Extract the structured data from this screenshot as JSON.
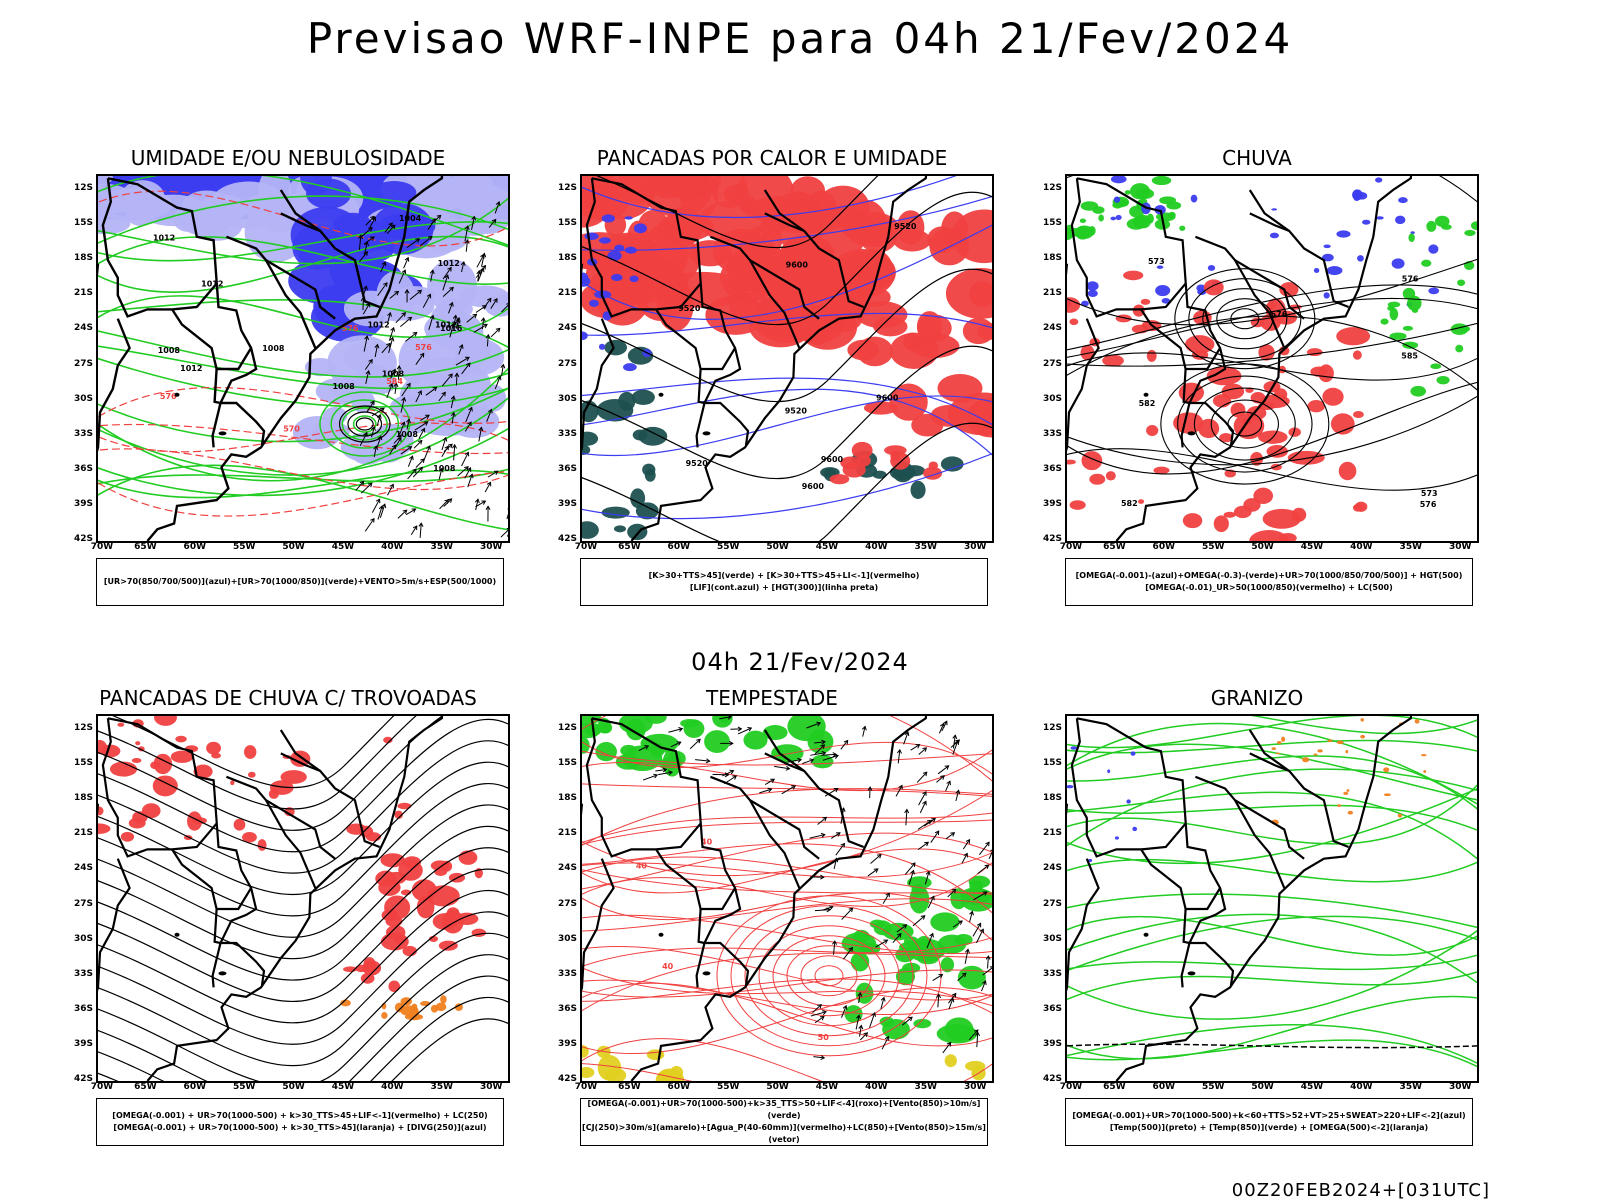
{
  "header": {
    "title": "Previsao WRF-INPE  para 04h 21/Fev/2024"
  },
  "middle": {
    "subtitle": "04h 21/Fev/2024"
  },
  "footer": {
    "stamp": "00Z20FEB2024+[031UTC]"
  },
  "axes": {
    "lat_labels": [
      "12S",
      "15S",
      "18S",
      "21S",
      "24S",
      "27S",
      "30S",
      "33S",
      "36S",
      "39S",
      "42S"
    ],
    "lon_labels": [
      "70W",
      "65W",
      "60W",
      "55W",
      "50W",
      "45W",
      "40W",
      "35W",
      "30W"
    ]
  },
  "colors": {
    "blue": "#3c3cf0",
    "lightblue": "#b4b4f5",
    "green": "#22cc22",
    "red": "#f04040",
    "orange": "#f08020",
    "yellow": "#e0d020",
    "darkteal": "#1e5050",
    "black": "#000000"
  },
  "panels": [
    {
      "title": "UMIDADE E/OU NEBULOSIDADE",
      "legend": [
        "[UR>70(850/700/500)](azul)+[UR>70(1000/850)](verde)+VENTO>5m/s+ESP(500/1000)"
      ],
      "contour_labels": [
        "1008",
        "1012",
        "1012",
        "1008",
        "1008",
        "1008",
        "1012",
        "1008",
        "1012",
        "1012",
        "1004",
        "1008",
        "1012",
        "1016",
        "576",
        "576",
        "570",
        "576",
        "584"
      ]
    },
    {
      "title": "PANCADAS POR CALOR E UMIDADE",
      "legend": [
        "[K>30+TTS>45](verde) + [K>30+TTS>45+LI<-1](vermelho)",
        "[LIF](cont.azul) + [HGT(300)](linha preta)"
      ],
      "contour_labels": [
        "9600",
        "9600",
        "9520",
        "9600",
        "9600",
        "9520",
        "9520",
        "9520"
      ]
    },
    {
      "title": "CHUVA",
      "legend": [
        "[OMEGA(-0.001)-(azul)+OMEGA(-0.3)-(verde)+UR>70(1000/850/700/500)] + HGT(500)",
        "[OMEGA(-0.01)_UR>50(1000/850)(vermelho) + LC(500)"
      ],
      "contour_labels": [
        "582",
        "585",
        "582",
        "576",
        "573",
        "576",
        "576",
        "573"
      ]
    },
    {
      "title": "PANCADAS DE CHUVA C/ TROVOADAS",
      "legend": [
        "[OMEGA(-0.001) + UR>70(1000-500) + k>30_TTS>45+LIF<-1](vermelho) + LC(250)",
        "[OMEGA(-0.001) + UR>70(1000-500) + k>30_TTS>45](laranja) + [DIVG(250)](azul)"
      ],
      "contour_labels": []
    },
    {
      "title": "TEMPESTADE",
      "legend": [
        "[OMEGA(-0.001)+UR>70(1000-500)+k>35_TTS>50+LIF<-4](roxo)+[Vento(850)>10m/s](verde)",
        "[CJ(250)>30m/s](amarelo)+[Agua_P(40-60mm)](vermelho)+LC(850)+[Vento(850)>15m/s](vetor)"
      ],
      "contour_labels": [
        "40",
        "40",
        "50",
        "40"
      ]
    },
    {
      "title": "GRANIZO",
      "legend": [
        "[OMEGA(-0.001)+UR>70(1000-500)+k<60+TTS>52+VT>25+SWEAT>220+LIF<-2](azul)",
        "[Temp(500)](preto) + [Temp(850)](verde) + [OMEGA(500)<-2](laranja)"
      ],
      "contour_labels": []
    }
  ]
}
